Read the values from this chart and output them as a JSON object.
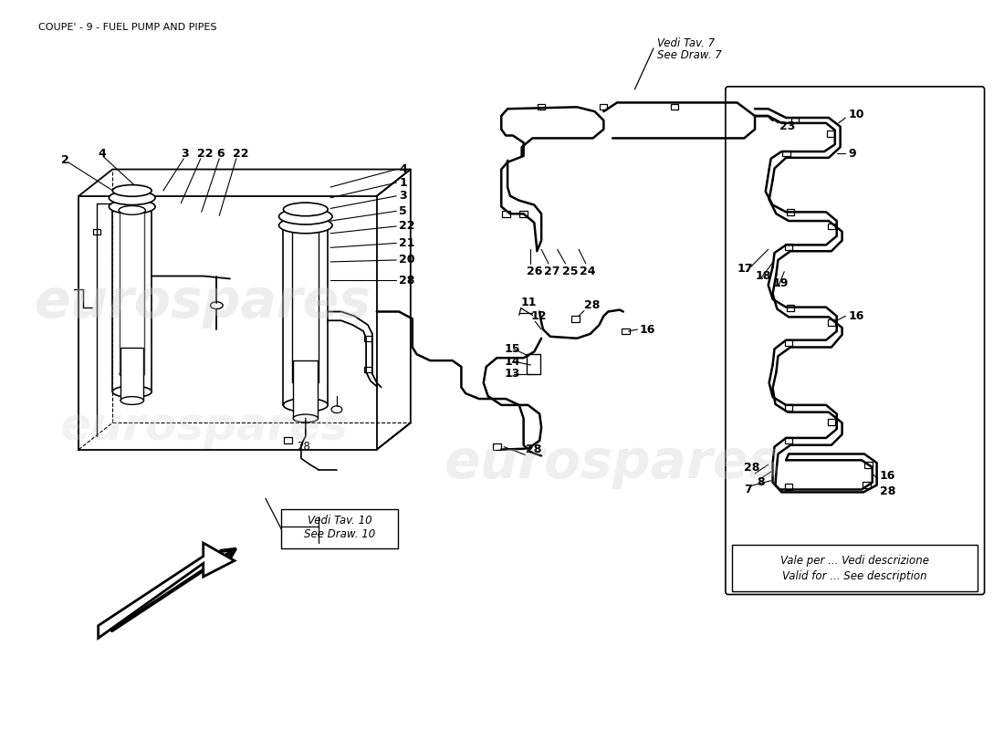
{
  "title": "COUPE' - 9 - FUEL PUMP AND PIPES",
  "bg": "#ffffff",
  "lc": "#000000",
  "wm": "eurospares",
  "wm_color": "#cccccc",
  "note_tav10_it": "Vedi Tav. 10",
  "note_tav10_en": "See Draw. 10",
  "note_tav7_it": "Vedi Tav. 7",
  "note_tav7_en": "See Draw. 7",
  "note_vale_it": "Vale per ... Vedi descrizione",
  "note_vale_en": "Valid for ... See description"
}
